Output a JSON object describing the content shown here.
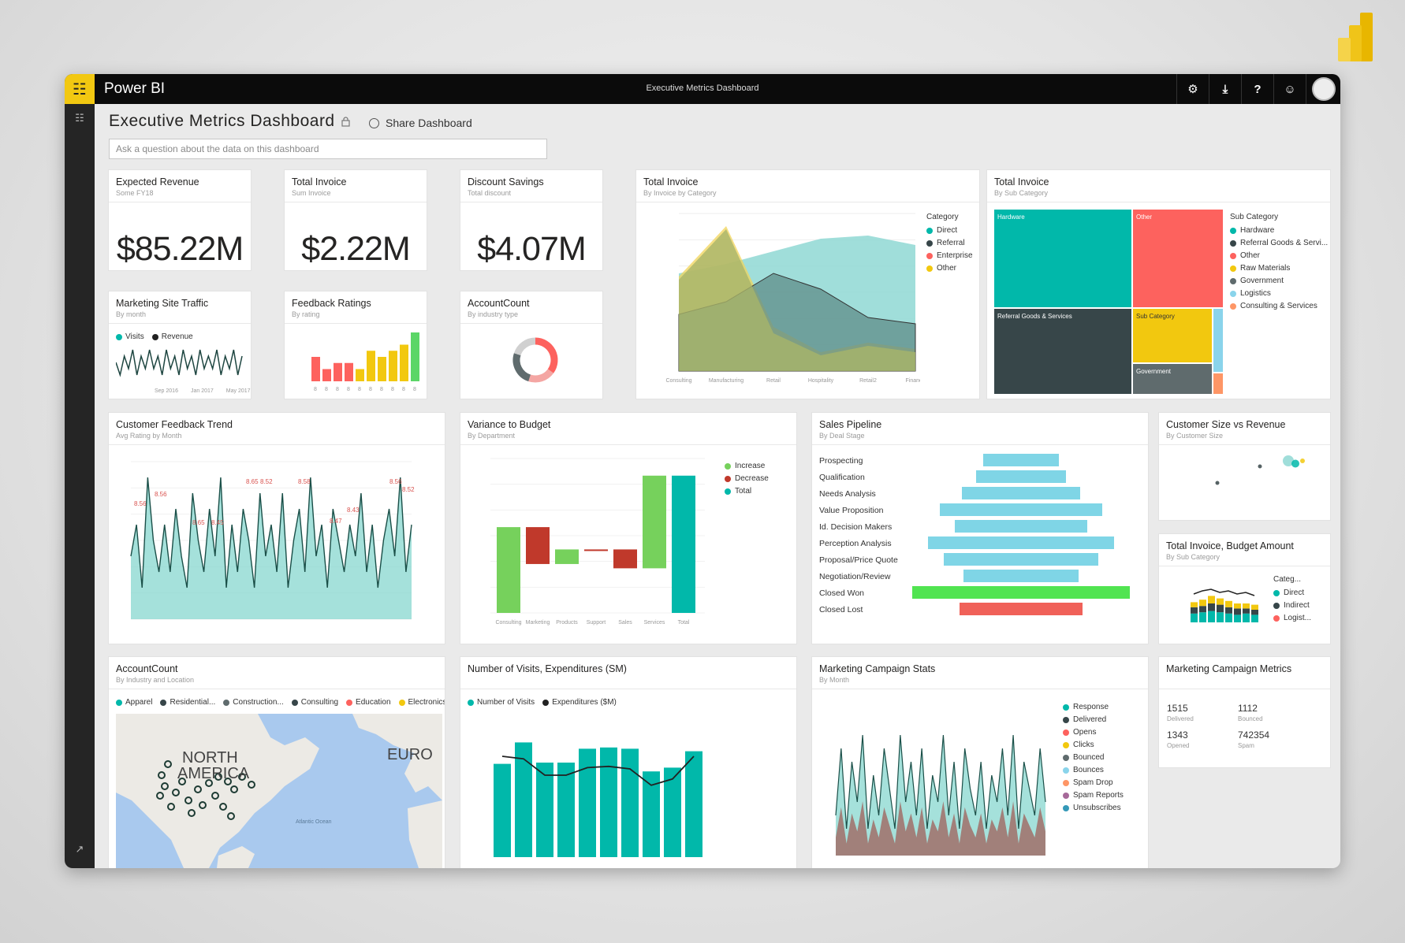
{
  "colors": {
    "teal": "#01b8aa",
    "dark": "#374649",
    "red": "#fd625e",
    "yellow": "#f2c80f",
    "green": "#8ad4b2",
    "gray": "#5f6b6d",
    "brand": "#f2c811"
  },
  "app": {
    "name": "Power BI",
    "window_title": "Executive Metrics Dashboard"
  },
  "topbar_icons": [
    "settings-icon",
    "download-icon",
    "help-icon",
    "feedback-icon",
    "avatar"
  ],
  "topbar_glyphs": {
    "settings": "⚙",
    "download": "⤓",
    "help": "?",
    "feedback": "☺"
  },
  "rail_glyphs": {
    "nav": "☷",
    "expand": "↗"
  },
  "header": {
    "title": "Executive Metrics Dashboard",
    "share_label": "Share Dashboard",
    "qa_placeholder": "Ask a question about the data on this dashboard"
  },
  "tiles": {
    "expected_revenue": {
      "title": "Expected Revenue",
      "sub": "Some FY18",
      "value": "$85.22M"
    },
    "total_invoice_card": {
      "title": "Total Invoice",
      "sub": "Sum Invoice",
      "value": "$2.22M"
    },
    "discount_savings": {
      "title": "Discount Savings",
      "sub": "Total discount",
      "value": "$4.07M"
    },
    "total_invoice_area": {
      "title": "Total Invoice",
      "sub": "By Invoice by Category",
      "legend_title": "Category",
      "legend": [
        "Direct",
        "Referral",
        "Enterprise",
        "Other"
      ]
    },
    "total_invoice_tree": {
      "title": "Total Invoice",
      "sub": "By Sub Category",
      "legend_title": "Sub Category",
      "legend": [
        "Hardware",
        "Referral Goods & Servi...",
        "Other",
        "Raw Materials",
        "Government",
        "Logistics",
        "Consulting & Services"
      ],
      "cell_labels": [
        "Hardware",
        "Other",
        "Referral Goods & Services",
        "Sub Category",
        "Government"
      ]
    },
    "marketing_traffic": {
      "title": "Marketing Site Traffic",
      "sub": "By month",
      "legend": [
        "Visits",
        "Revenue"
      ],
      "x_labels": [
        "Sep 2016",
        "Jan 2017",
        "May 2017"
      ]
    },
    "feedback_ratings": {
      "title": "Feedback Ratings",
      "sub": "By rating"
    },
    "account_count_donut": {
      "title": "AccountCount",
      "sub": "By industry type"
    },
    "customer_feedback": {
      "title": "Customer Feedback Trend",
      "sub": "Avg Rating by Month",
      "labels": [
        "8.56",
        "8.56",
        "8.65",
        "8.52",
        "8.58",
        "8.65",
        "8.45",
        "8.43",
        "8.47",
        "8.56",
        "8.52"
      ]
    },
    "variance_budget": {
      "title": "Variance to Budget",
      "sub": "By Department",
      "legend": [
        "Increase",
        "Decrease",
        "Total"
      ],
      "x_labels": [
        "Consulting",
        "Marketing",
        "Products",
        "Support",
        "Sales",
        "Services",
        "Total"
      ]
    },
    "sales_pipeline": {
      "title": "Sales Pipeline",
      "sub": "By Deal Stage"
    },
    "customer_size": {
      "title": "Customer Size vs Revenue",
      "sub": "By Customer Size"
    },
    "invoice_budget": {
      "title": "Total Invoice, Budget Amount",
      "sub": "By Sub Category",
      "legend_title": "Categ...",
      "legend": [
        "Direct",
        "Indirect",
        "Logist..."
      ]
    },
    "account_count_map": {
      "title": "AccountCount",
      "sub": "By Industry and Location",
      "legend": [
        "Apparel",
        "Residential...",
        "Construction...",
        "Consulting",
        "Education",
        "Electronics"
      ],
      "map_labels": [
        "NORTH",
        "AMERICA",
        "EURO",
        "Atlantic Ocean"
      ]
    },
    "visits_expenditure": {
      "title": "Number of Visits, Expenditures (SM)",
      "sub": "",
      "legend": [
        "Number of Visits",
        "Expenditures ($M)"
      ]
    },
    "campaign_stats": {
      "title": "Marketing Campaign Stats",
      "sub": "By Month",
      "legend": [
        "Response",
        "Delivered",
        "Opens",
        "Clicks",
        "Bounced",
        "Bounces",
        "Spam Drop",
        "Spam Reports",
        "Unsubscribes"
      ]
    },
    "campaign_metrics": {
      "title": "Marketing Campaign Metrics",
      "kv": [
        {
          "val": "1515",
          "sub": "Delivered"
        },
        {
          "val": "1112",
          "sub": "Bounced"
        },
        {
          "val": "1343",
          "sub": "Opened"
        },
        {
          "val": "742354",
          "sub": "Spam"
        }
      ]
    }
  },
  "chart_data": [
    {
      "type": "area",
      "name": "Total Invoice by Category",
      "x": [
        "Consulting",
        "Manufacturing",
        "Retail",
        "Hospitality",
        "Retail2",
        "Finance"
      ],
      "series": [
        {
          "name": "Direct",
          "values": [
            3.1,
            3.4,
            3.8,
            4.2,
            4.3,
            4.0
          ]
        },
        {
          "name": "Referral",
          "values": [
            1.8,
            2.2,
            3.1,
            2.6,
            1.7,
            1.5
          ]
        },
        {
          "name": "Enterprise",
          "values": [
            2.9,
            4.5,
            1.2,
            0.5,
            0.8,
            0.6
          ]
        },
        {
          "name": "Other",
          "values": [
            3.0,
            4.6,
            1.4,
            0.6,
            0.9,
            0.7
          ]
        }
      ]
    },
    {
      "type": "treemap",
      "name": "Total Invoice by Sub Category",
      "cells": [
        {
          "label": "Hardware",
          "value": 32
        },
        {
          "label": "Other",
          "value": 22
        },
        {
          "label": "Referral Goods & Services",
          "value": 24
        },
        {
          "label": "Sub Category",
          "value": 8
        },
        {
          "label": "Government",
          "value": 6
        },
        {
          "label": "Logistics",
          "value": 4
        },
        {
          "label": "Consulting & Services",
          "value": 2
        }
      ]
    },
    {
      "type": "line",
      "name": "Marketing Site Traffic",
      "series": [
        {
          "name": "Visits",
          "values": [
            3,
            1,
            4,
            2,
            5,
            1,
            4,
            2,
            5,
            2,
            4,
            1,
            5,
            2,
            4,
            1,
            5,
            2,
            4,
            1,
            5,
            2,
            4,
            2,
            5,
            1,
            4,
            2,
            5,
            1,
            4
          ]
        }
      ]
    },
    {
      "type": "bar",
      "name": "Feedback Ratings",
      "values": [
        4,
        2,
        3,
        3,
        2,
        5,
        4,
        5,
        6,
        8
      ],
      "colors": [
        "#fd625e",
        "#fd625e",
        "#fd625e",
        "#fd625e",
        "#f2c80f",
        "#f2c80f",
        "#f2c80f",
        "#f2c80f",
        "#f2c80f",
        "#5bd667"
      ]
    },
    {
      "type": "pie",
      "name": "AccountCount donut",
      "values": [
        35,
        20,
        25,
        20
      ],
      "colors": [
        "#fd625e",
        "#f4a6a3",
        "#5f6b6d",
        "#d0d0d0"
      ]
    },
    {
      "type": "area",
      "name": "Customer Feedback Trend",
      "values": [
        4,
        6,
        2,
        9,
        5,
        3,
        6,
        3,
        7,
        4,
        2,
        8,
        5,
        3,
        7,
        4,
        9,
        2,
        6,
        3,
        7,
        5,
        2,
        8,
        4,
        6,
        3,
        8,
        2,
        5,
        7,
        3,
        9,
        4,
        6,
        2,
        7,
        5,
        3,
        6,
        4,
        8,
        3,
        6,
        2,
        5,
        7,
        4,
        9,
        3,
        6
      ]
    },
    {
      "type": "bar",
      "name": "Variance to Budget",
      "categories": [
        "Consulting",
        "Marketing",
        "Products",
        "Support",
        "Sales",
        "Services",
        "Total"
      ],
      "waterfall": [
        [
          0,
          100
        ],
        [
          100,
          57
        ],
        [
          57,
          74
        ],
        [
          74,
          74
        ],
        [
          74,
          52
        ],
        [
          52,
          160
        ],
        [
          0,
          160
        ]
      ],
      "colors": [
        "#76d15c",
        "#c0392b",
        "#76d15c",
        "#c0392b",
        "#c0392b",
        "#76d15c",
        "#01b8aa"
      ],
      "ylim": [
        0,
        180
      ]
    },
    {
      "type": "bar",
      "name": "Sales Pipeline",
      "categories": [
        "Prospecting",
        "Qualification",
        "Needs Analysis",
        "Value Proposition",
        "Id. Decision Makers",
        "Perception Analysis",
        "Proposal/Price Quote",
        "Negotiation/Review",
        "Closed Won",
        "Closed Lost"
      ],
      "values": [
        96,
        114,
        150,
        206,
        168,
        236,
        196,
        146,
        276,
        156
      ],
      "colors": [
        "#7fd5e6",
        "#7fd5e6",
        "#7fd5e6",
        "#7fd5e6",
        "#7fd5e6",
        "#7fd5e6",
        "#7fd5e6",
        "#7fd5e6",
        "#51e451",
        "#f06159"
      ]
    },
    {
      "type": "scatter",
      "name": "Customer Size vs Revenue",
      "points": [
        [
          6,
          8
        ],
        [
          3,
          5
        ],
        [
          8,
          9
        ],
        [
          8.5,
          8.5
        ],
        [
          9,
          9
        ]
      ]
    },
    {
      "type": "bar",
      "name": "Total Invoice, Budget Amount",
      "series": [
        {
          "name": "Direct",
          "values": [
            7,
            8,
            9,
            8,
            7,
            6,
            7,
            6
          ]
        },
        {
          "name": "Indirect",
          "values": [
            5,
            5,
            6,
            6,
            5,
            5,
            4,
            4
          ]
        },
        {
          "name": "Logistics",
          "values": [
            4,
            5,
            6,
            5,
            5,
            4,
            4,
            4
          ]
        }
      ]
    },
    {
      "type": "bar",
      "name": "Number of Visits, Expenditures",
      "values": [
        74,
        91,
        75,
        75,
        86,
        87,
        86,
        68,
        71,
        84
      ],
      "line": [
        80,
        78,
        65,
        65,
        71,
        72,
        70,
        57,
        62,
        80
      ],
      "ylim": [
        0,
        100
      ]
    },
    {
      "type": "area",
      "name": "Marketing Campaign Stats",
      "values": [
        3,
        8,
        2,
        7,
        4,
        9,
        2,
        6,
        3,
        8,
        5,
        2,
        9,
        4,
        7,
        3,
        8,
        2,
        6,
        4,
        9,
        3,
        7,
        2,
        8,
        5,
        3,
        7,
        2,
        6,
        4,
        8,
        3,
        9,
        2,
        7,
        5,
        3,
        8,
        4
      ]
    }
  ]
}
